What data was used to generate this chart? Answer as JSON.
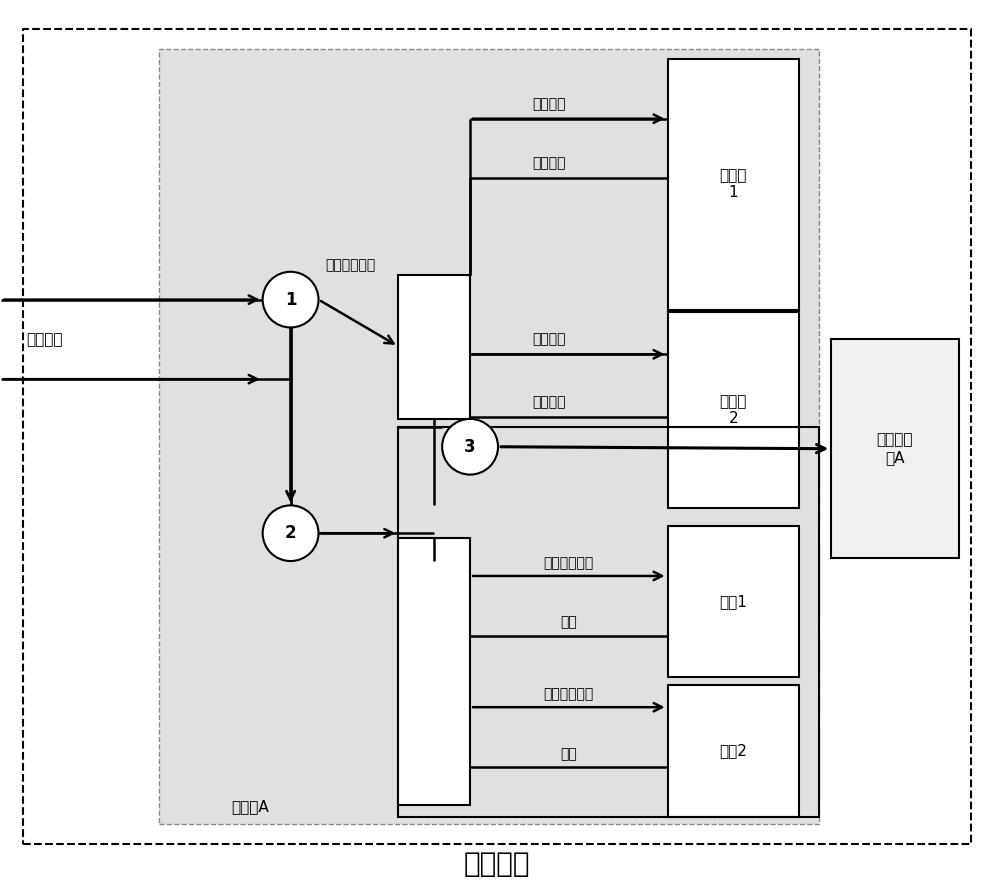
{
  "outer_box_label": "综合电子",
  "inner_box_label": "路由板A",
  "node1_label": "1",
  "node2_label": "2",
  "node3_label": "3",
  "node1_sublabel": "辅助数据拼接",
  "input_label": "图像数据",
  "calc1_label": "计算板\n1",
  "calc2_label": "计算板\n2",
  "storage1_label": "存储1",
  "storage2_label": "存储2",
  "channel_label": "通道适配\n板A",
  "label_img_data_1": "图像数据",
  "label_stream_1": "码流数据",
  "label_img_data_2": "图像数据",
  "label_stream_2": "码流数据",
  "label_compress1": "压缩码流记录",
  "label_playback1": "回放",
  "label_compress2": "压缩码流记录",
  "label_playback2": "回放",
  "figsize": [
    10.0,
    8.83
  ]
}
